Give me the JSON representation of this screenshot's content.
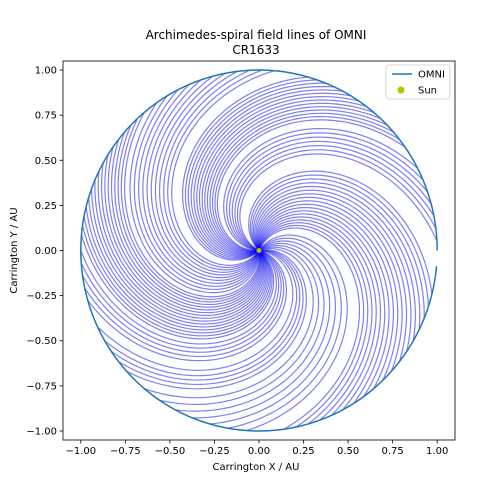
{
  "chart_data": {
    "type": "line",
    "title": "Archimedes-spiral field lines of OMNI",
    "subtitle": "CR1633",
    "xlabel": "Carrington X / AU",
    "ylabel": "Carrington Y / AU",
    "xlim": [
      -1.1,
      1.1
    ],
    "ylim": [
      -1.05,
      1.05
    ],
    "xticks": [
      -1.0,
      -0.75,
      -0.5,
      -0.25,
      0.0,
      0.25,
      0.5,
      0.75,
      1.0
    ],
    "yticks": [
      -1.0,
      -0.75,
      -0.5,
      -0.25,
      0.0,
      0.25,
      0.5,
      0.75,
      1.0
    ],
    "xtick_labels": [
      "−1.00",
      "−0.75",
      "−0.50",
      "−0.25",
      "0.00",
      "0.25",
      "0.50",
      "0.75",
      "1.00"
    ],
    "ytick_labels": [
      "−1.00",
      "−0.75",
      "−0.50",
      "−0.25",
      "0.00",
      "0.25",
      "0.50",
      "0.75",
      "1.00"
    ],
    "grid": false,
    "legend_position": "top-right",
    "series": [
      {
        "name": "OMNI",
        "kind": "orbit-circle",
        "color": "#1f77b4",
        "radius_au": 1.0,
        "start_angle_deg": 0,
        "end_angle_deg": 355
      },
      {
        "name": "Sun",
        "kind": "point",
        "color": "#bfbf00",
        "x": 0.0,
        "y": 0.0
      }
    ],
    "field_lines": {
      "color": "#0000ee",
      "opacity": 0.5,
      "spiral_winding_rad_per_au": 2.6,
      "footpoint_angles_deg": [
        3,
        7,
        11,
        15,
        19,
        23,
        27,
        35,
        38,
        41,
        44,
        47,
        50,
        53,
        56,
        59,
        62,
        65,
        68,
        71,
        74,
        85,
        89,
        93,
        97,
        101,
        105,
        109,
        113,
        117,
        121,
        125,
        130,
        133,
        136,
        139,
        142,
        145,
        148,
        151,
        154,
        157,
        160,
        163,
        166,
        169,
        172,
        175,
        180,
        184,
        188,
        192,
        196,
        205,
        210,
        214,
        218,
        222,
        230,
        236,
        242,
        248,
        254,
        260,
        266,
        278,
        282,
        286,
        290,
        294,
        298,
        302,
        306,
        310,
        314,
        318,
        322,
        326,
        330,
        334,
        338,
        342,
        346
      ]
    }
  }
}
